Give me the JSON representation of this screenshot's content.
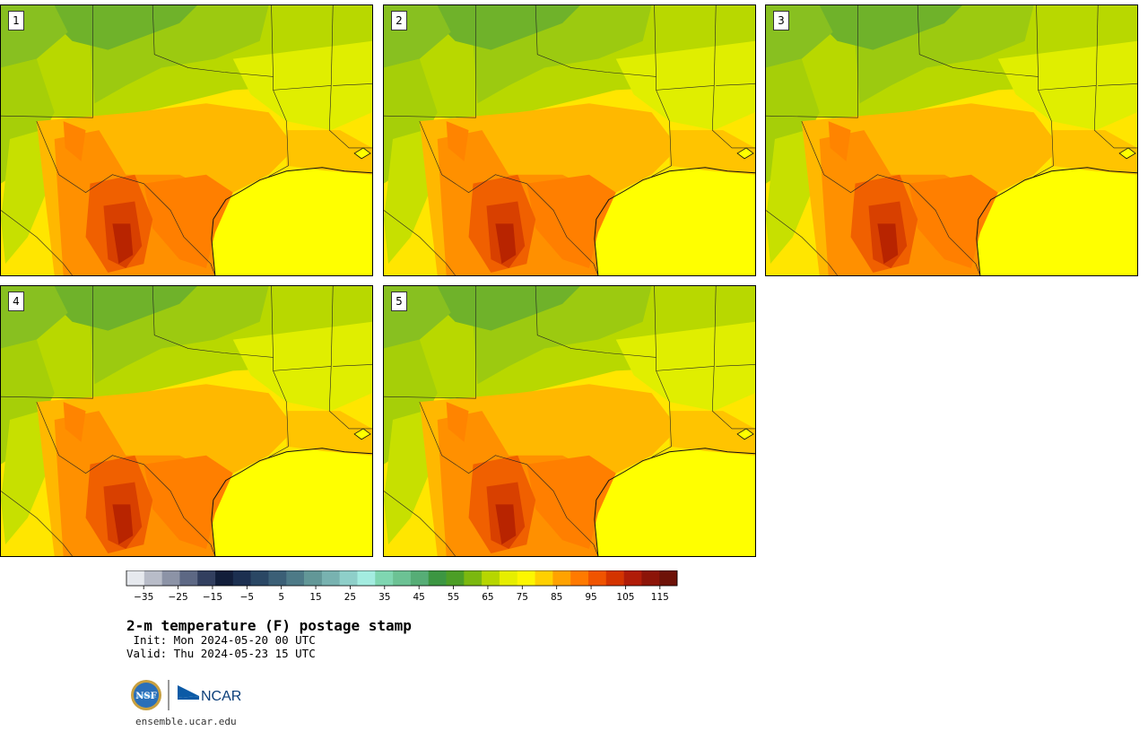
{
  "panels": [
    {
      "label": "1"
    },
    {
      "label": "2"
    },
    {
      "label": "3"
    },
    {
      "label": "4"
    },
    {
      "label": "5"
    }
  ],
  "colorbar": {
    "colors": [
      "#e6e9ee",
      "#b8bcc8",
      "#8c93a6",
      "#5d6884",
      "#323f5f",
      "#121e3a",
      "#1c2f50",
      "#2a4764",
      "#3b5f76",
      "#4d7a87",
      "#629797",
      "#78b2b0",
      "#8ecfc9",
      "#a3ece0",
      "#7fd6b1",
      "#6cc294",
      "#56ad76",
      "#3c9642",
      "#4c9e26",
      "#7bb80f",
      "#b6d600",
      "#e6ee00",
      "#fdf600",
      "#ffd000",
      "#ffa200",
      "#ff7a00",
      "#f05400",
      "#d43400",
      "#b01c08",
      "#8c1408",
      "#6e1208"
    ],
    "ticks": [
      "−35",
      "−25",
      "−15",
      "−5",
      "5",
      "15",
      "25",
      "35",
      "45",
      "55",
      "65",
      "75",
      "85",
      "95",
      "105",
      "115"
    ],
    "min": -40,
    "max": 120
  },
  "title": "2-m temperature (F) postage stamp",
  "init": " Init: Mon 2024-05-20 00 UTC",
  "valid": "Valid: Thu 2024-05-23 15 UTC",
  "logo": {
    "nsf": "NSF",
    "ncar": "NCAR"
  },
  "site": "ensemble.ucar.edu"
}
